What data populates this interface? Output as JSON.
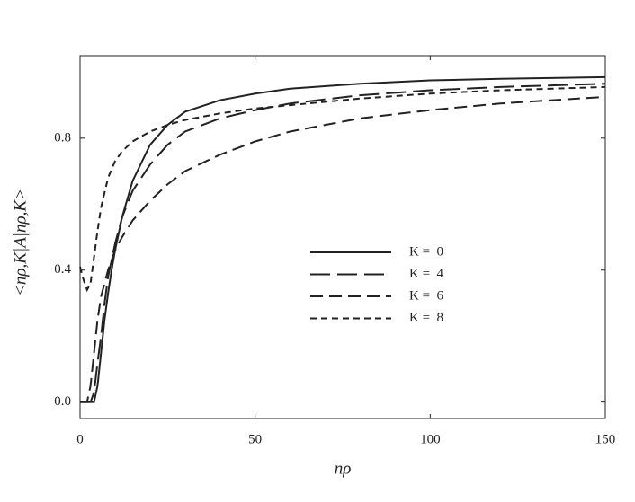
{
  "chart_data": {
    "type": "line",
    "xlabel": "nρ",
    "ylabel": "<nρ,K|A|nρ,K>",
    "xlim": [
      0,
      150
    ],
    "xticks": [
      0,
      50,
      100,
      150
    ],
    "ylim": [
      -0.05,
      1.05
    ],
    "yticks": [
      {
        "value": 0,
        "label": "0.0"
      },
      0.4,
      0.8
    ],
    "grid": false,
    "series": [
      {
        "name": "K =  0",
        "color": "#222222",
        "dash": "none",
        "x": [
          0,
          4,
          5,
          6,
          7,
          8,
          9,
          10,
          12,
          15,
          20,
          25,
          30,
          40,
          50,
          60,
          80,
          100,
          120,
          150
        ],
        "values": [
          0,
          0,
          0.05,
          0.15,
          0.25,
          0.33,
          0.4,
          0.46,
          0.56,
          0.67,
          0.78,
          0.84,
          0.88,
          0.915,
          0.935,
          0.95,
          0.965,
          0.975,
          0.98,
          0.985
        ]
      },
      {
        "name": "K =  4",
        "color": "#222222",
        "dash": "22 8",
        "x": [
          0,
          3,
          4,
          5,
          6,
          7,
          8,
          10,
          12,
          15,
          20,
          25,
          30,
          40,
          50,
          60,
          80,
          100,
          120,
          150
        ],
        "values": [
          0,
          0,
          0.03,
          0.12,
          0.2,
          0.3,
          0.38,
          0.48,
          0.56,
          0.64,
          0.72,
          0.78,
          0.82,
          0.86,
          0.885,
          0.905,
          0.93,
          0.945,
          0.955,
          0.965
        ]
      },
      {
        "name": "K =  6",
        "color": "#222222",
        "dash": "14 7",
        "x": [
          0,
          2,
          3,
          4,
          5,
          6,
          8,
          10,
          12,
          15,
          20,
          25,
          30,
          40,
          50,
          60,
          80,
          100,
          120,
          150
        ],
        "values": [
          0,
          0,
          0.05,
          0.15,
          0.25,
          0.32,
          0.4,
          0.46,
          0.5,
          0.55,
          0.61,
          0.66,
          0.7,
          0.75,
          0.79,
          0.82,
          0.86,
          0.885,
          0.905,
          0.925
        ]
      },
      {
        "name": "K =  8",
        "color": "#222222",
        "dash": "7 5",
        "x": [
          0,
          1,
          2,
          3,
          4,
          5,
          6,
          8,
          10,
          12,
          15,
          20,
          25,
          30,
          40,
          50,
          60,
          80,
          100,
          120,
          150
        ],
        "values": [
          0.41,
          0.37,
          0.34,
          0.36,
          0.44,
          0.52,
          0.59,
          0.68,
          0.73,
          0.76,
          0.79,
          0.82,
          0.84,
          0.855,
          0.875,
          0.89,
          0.9,
          0.92,
          0.935,
          0.945,
          0.955
        ]
      }
    ]
  }
}
